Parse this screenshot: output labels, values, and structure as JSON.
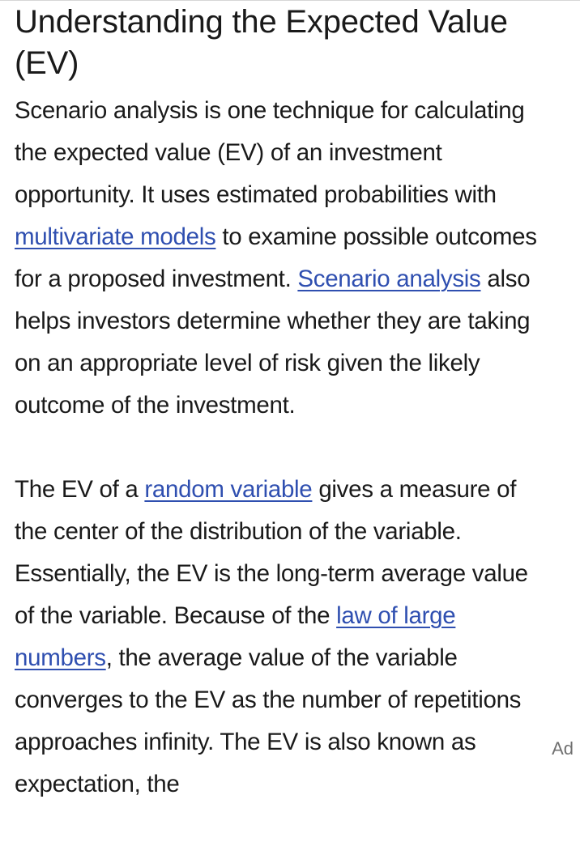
{
  "article": {
    "title": "Understanding the Expected Value (EV)",
    "paragraph1": {
      "t1": "Scenario analysis is one technique for calculating the expected value (EV) of an investment opportunity. It uses estimated probabilities with ",
      "link1": "multivariate models",
      "t2": " to examine possible outcomes for a proposed investment. ",
      "link2": "Scenario analysis",
      "t3": " also helps investors determine whether they are taking on an appropriate level of risk given the likely outcome of the investment."
    },
    "paragraph2": {
      "t1": "The EV of a ",
      "link1": "random variable",
      "t2": " gives a measure of the center of the distribution of the variable. Essentially, the EV is the long-term average value of the variable. Because of the ",
      "link2": "law of large numbers",
      "t3": ", the average value of the variable converges to the EV as the number of repetitions approaches infinity. The EV is also known as expectation, the"
    }
  },
  "ad": {
    "label": "Ad"
  },
  "colors": {
    "text": "#1a1a1a",
    "link": "#2f4fb0",
    "ad_label": "#707070",
    "background": "#ffffff"
  }
}
